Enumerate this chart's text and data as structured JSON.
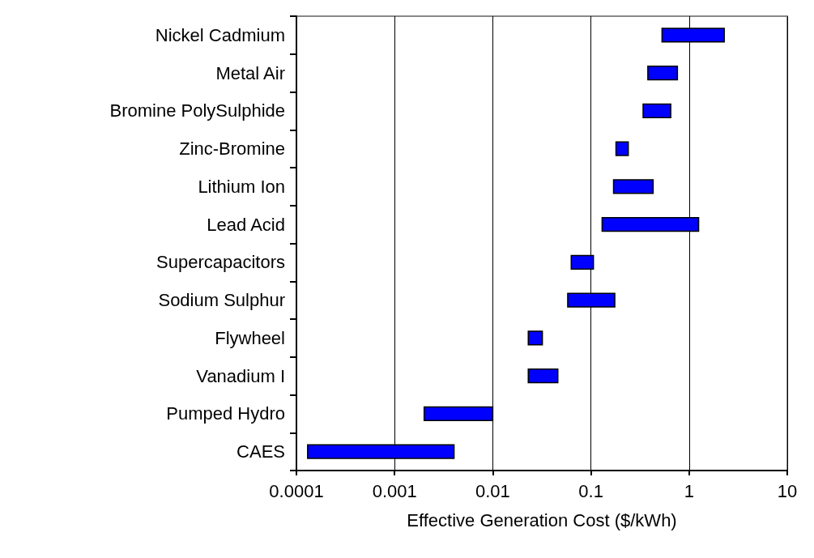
{
  "chart_data": {
    "type": "bar",
    "orientation": "horizontal",
    "xlabel": "Effective Generation Cost ($/kWh)",
    "categories": [
      "Nickel Cadmium",
      "Metal Air",
      "Bromine PolySulphide",
      "Zinc-Bromine",
      "Lithium Ion",
      "Lead Acid",
      "Supercapacitors",
      "Sodium Sulphur",
      "Flywheel",
      "Vanadium I",
      "Pumped Hydro",
      "CAES"
    ],
    "base": [
      0.53,
      0.38,
      0.34,
      0.18,
      0.17,
      0.13,
      0.063,
      0.058,
      0.023,
      0.023,
      0.002,
      0.00013
    ],
    "values": [
      1.75,
      0.38,
      0.31,
      0.06,
      0.26,
      1.12,
      0.043,
      0.117,
      0.009,
      0.023,
      0.008,
      0.0039
    ],
    "color": "#0000ff",
    "log": "x",
    "xlim": [
      0.0001,
      10
    ],
    "xticks": [
      0.0001,
      0.001,
      0.01,
      0.1,
      1,
      10
    ],
    "grid": "x"
  }
}
